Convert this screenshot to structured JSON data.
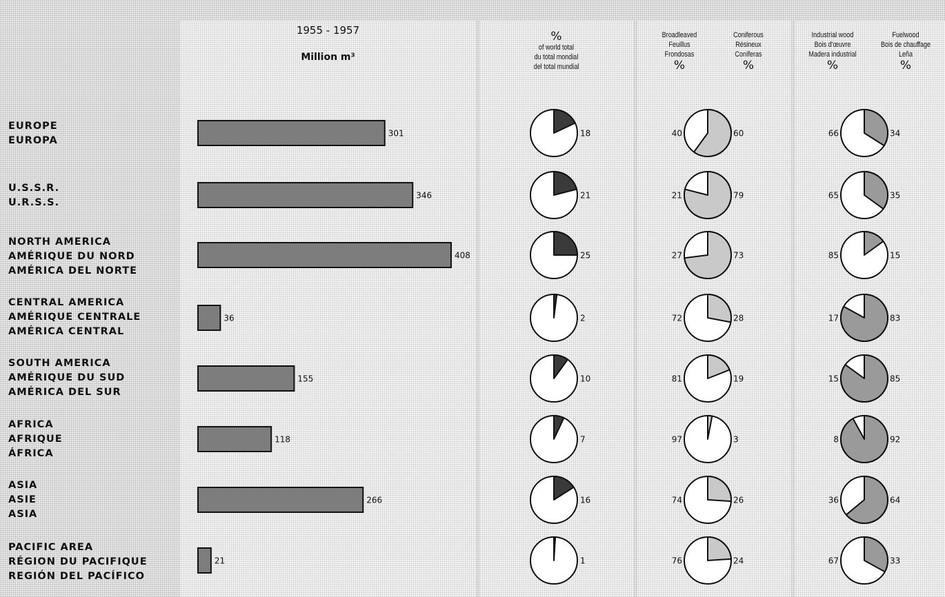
{
  "regions": [
    {
      "lines": [
        "EUROPE",
        "EUROPA"
      ]
    },
    {
      "lines": [
        "U.S.S.R.",
        "U.R.S.S."
      ]
    },
    {
      "lines": [
        "NORTH AMERICA",
        "AMÉRIQUE DU NORD",
        "AMÉRICA DEL NORTE"
      ]
    },
    {
      "lines": [
        "CENTRAL AMERICA",
        "AMÉRIQUE CENTRALE",
        "AMÉRICA CENTRAL"
      ]
    },
    {
      "lines": [
        "SOUTH AMERICA",
        "AMÉRIQUE DU SUD",
        "AMÉRICA DEL SUR"
      ]
    },
    {
      "lines": [
        "AFRICA",
        "AFRIQUE",
        "ÁFRICA"
      ]
    },
    {
      "lines": [
        "ASIA",
        "ASIE",
        "ASIA"
      ]
    },
    {
      "lines": [
        "PACIFIC AREA",
        "RÉGION DU PACIFIQUE",
        "REGIÓN DEL PACÍFICO"
      ]
    }
  ],
  "headers": {
    "bars": {
      "period": "1955 - 1957",
      "unit": "Million m³"
    },
    "world": {
      "symbol": "%",
      "line1": "of world total",
      "line2": "du total mondial",
      "line3": "del total mundial"
    },
    "broadleaved": {
      "line1": "Broadleaved",
      "line2": "Feuillus",
      "line3": "Frondosas",
      "symbol": "%"
    },
    "coniferous": {
      "line1": "Coniferous",
      "line2": "Résineux",
      "line3": "Coníferas",
      "symbol": "%"
    },
    "industrial": {
      "line1": "Industrial wood",
      "line2": "Bois d'œuvre",
      "line3": "Madera industrial",
      "symbol": "%"
    },
    "fuelwood": {
      "line1": "Fuelwood",
      "line2": "Bois de chauffage",
      "line3": "Leña",
      "symbol": "%"
    }
  },
  "colors": {
    "bar": "#7d7d7d",
    "world_share": "#3a3a3a",
    "coniferous": "#c9c9c9",
    "fuelwood": "#9a9a9a",
    "pie_base": "#ffffff",
    "outline": "#111111"
  },
  "chart_data": [
    {
      "type": "bar",
      "orientation": "horizontal",
      "title": "1955 - 1957",
      "unit": "Million m³",
      "categories": [
        "EUROPE",
        "U.S.S.R.",
        "NORTH AMERICA",
        "CENTRAL AMERICA",
        "SOUTH AMERICA",
        "AFRICA",
        "ASIA",
        "PACIFIC AREA"
      ],
      "values": [
        301,
        346,
        408,
        36,
        155,
        118,
        266,
        21
      ],
      "xlim": [
        0,
        408
      ]
    },
    {
      "type": "pie",
      "title": "% of world total",
      "categories": [
        "EUROPE",
        "U.S.S.R.",
        "NORTH AMERICA",
        "CENTRAL AMERICA",
        "SOUTH AMERICA",
        "AFRICA",
        "ASIA",
        "PACIFIC AREA"
      ],
      "values": [
        18,
        21,
        25,
        2,
        10,
        7,
        16,
        1
      ]
    },
    {
      "type": "pie",
      "title": "Broadleaved / Coniferous %",
      "categories": [
        "EUROPE",
        "U.S.S.R.",
        "NORTH AMERICA",
        "CENTRAL AMERICA",
        "SOUTH AMERICA",
        "AFRICA",
        "ASIA",
        "PACIFIC AREA"
      ],
      "series": [
        {
          "name": "Broadleaved",
          "values": [
            40,
            21,
            27,
            72,
            81,
            97,
            74,
            76
          ]
        },
        {
          "name": "Coniferous",
          "values": [
            60,
            79,
            73,
            28,
            19,
            3,
            26,
            24
          ]
        }
      ]
    },
    {
      "type": "pie",
      "title": "Industrial wood / Fuelwood %",
      "categories": [
        "EUROPE",
        "U.S.S.R.",
        "NORTH AMERICA",
        "CENTRAL AMERICA",
        "SOUTH AMERICA",
        "AFRICA",
        "ASIA",
        "PACIFIC AREA"
      ],
      "series": [
        {
          "name": "Industrial wood",
          "values": [
            66,
            65,
            85,
            17,
            15,
            8,
            36,
            67
          ]
        },
        {
          "name": "Fuelwood",
          "values": [
            34,
            35,
            15,
            83,
            85,
            92,
            64,
            33
          ]
        }
      ]
    }
  ]
}
